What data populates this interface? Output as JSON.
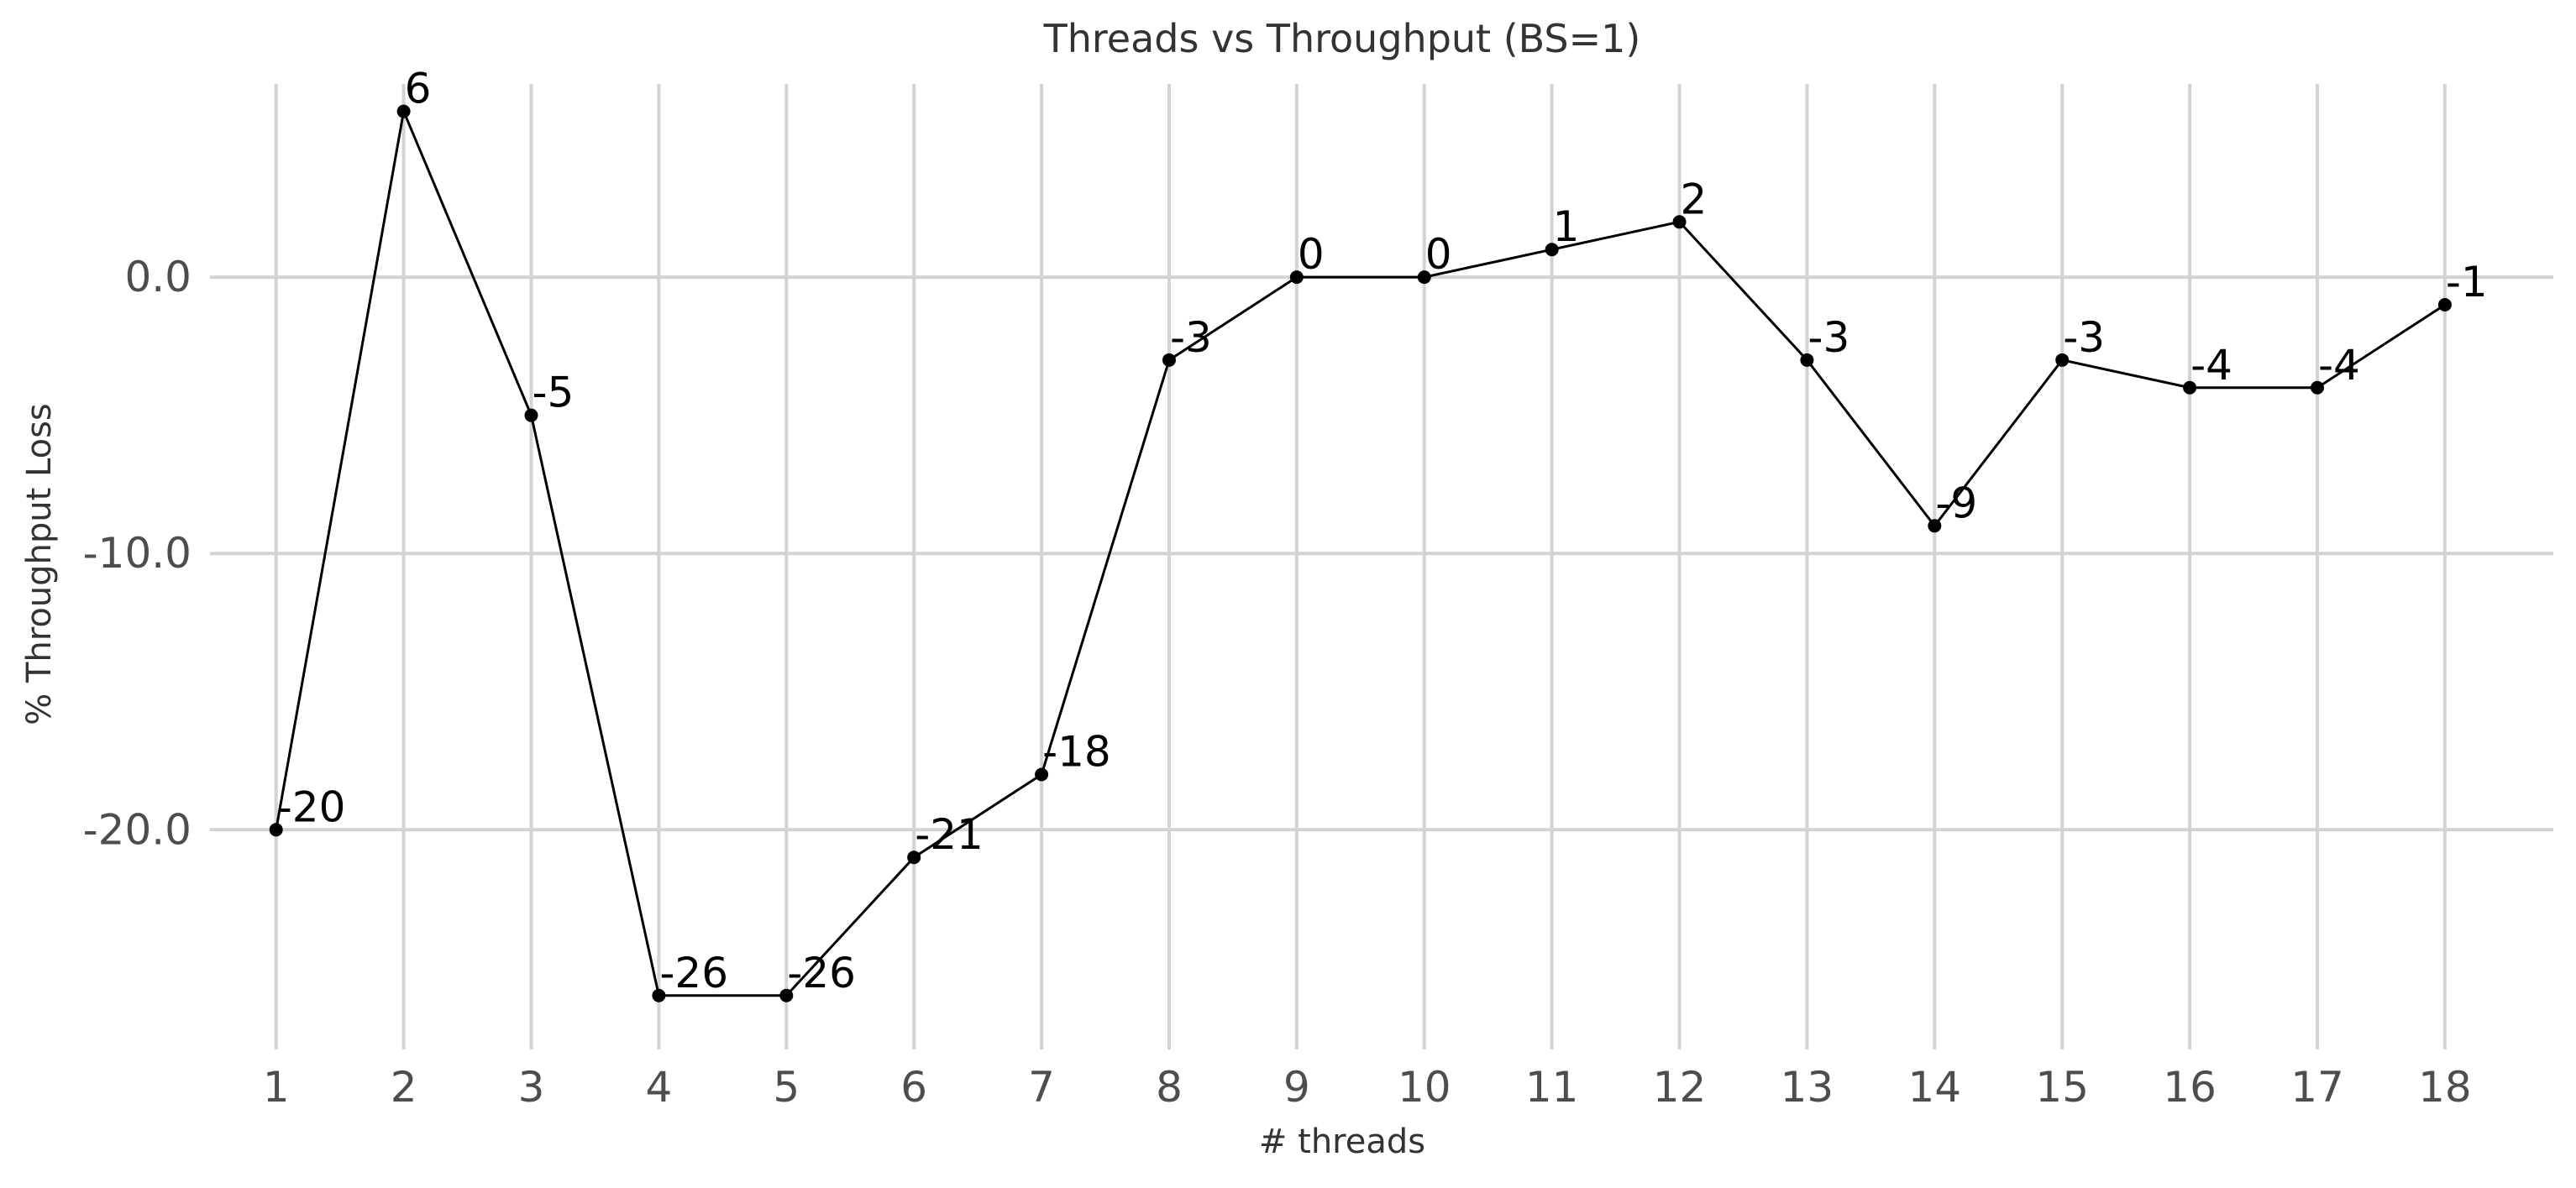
{
  "chart_data": {
    "type": "line",
    "title": "Threads vs Throughput (BS=1)",
    "xlabel": "# threads",
    "ylabel": "% Throughput Loss",
    "x": [
      1,
      2,
      3,
      4,
      5,
      6,
      7,
      8,
      9,
      10,
      11,
      12,
      13,
      14,
      15,
      16,
      17,
      18
    ],
    "x_tick_labels": [
      "1",
      "2",
      "3",
      "4",
      "5",
      "6",
      "7",
      "8",
      "9",
      "10",
      "11",
      "12",
      "13",
      "14",
      "15",
      "16",
      "17",
      "18"
    ],
    "series": [
      {
        "values": [
          -20,
          6,
          -5,
          -26,
          -26,
          -21,
          -18,
          -3,
          0,
          0,
          1,
          2,
          -3,
          -9,
          -3,
          -4,
          -4,
          -1
        ],
        "data_labels": [
          "-20",
          "6",
          "-5",
          "-26",
          "-26",
          "-21",
          "-18",
          "-3",
          "0",
          "0",
          "1",
          "2",
          "-3",
          "-9",
          "-3",
          "-4",
          "-4",
          "-1"
        ],
        "color": "#000000"
      }
    ],
    "y_ticks": [
      0.0,
      -10.0,
      -20.0
    ],
    "y_tick_labels": [
      "0.0",
      "-10.0",
      "-20.0"
    ],
    "xlim": [
      0.35,
      18.85
    ],
    "ylim": [
      -27.8,
      7.6
    ],
    "grid": true,
    "legend": "none",
    "colors": {
      "line": "#000000",
      "grid": "#d3d3d3",
      "background": "#ffffff"
    }
  }
}
